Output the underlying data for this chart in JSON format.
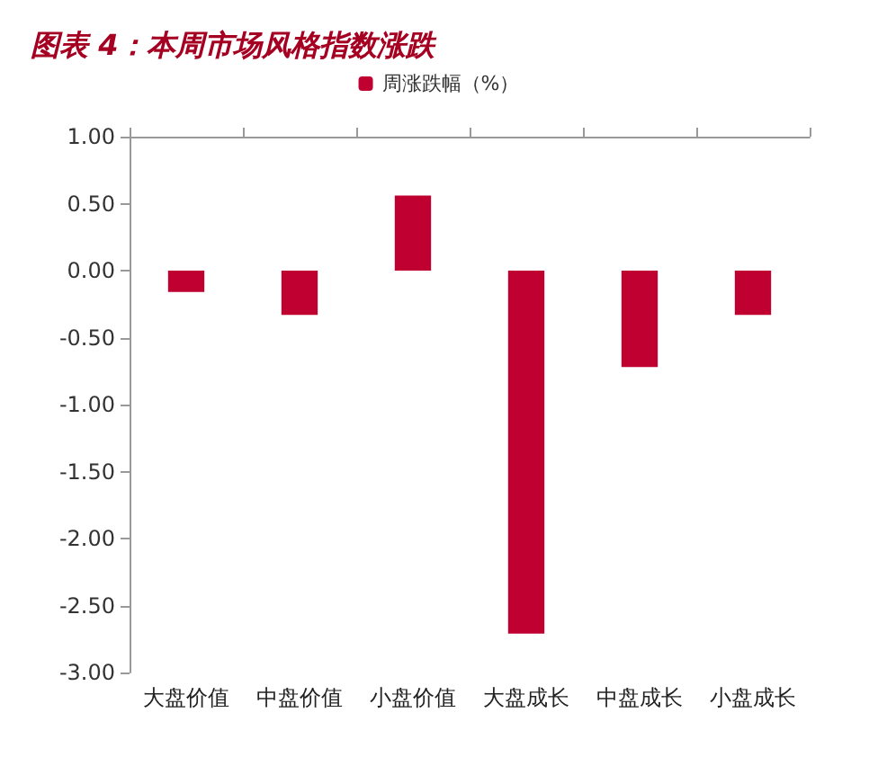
{
  "chart_data": {
    "type": "bar",
    "title": "图表 4：本周市场风格指数涨跌",
    "categories": [
      "大盘价值",
      "中盘价值",
      "小盘价值",
      "大盘成长",
      "中盘成长",
      "小盘成长"
    ],
    "series": [
      {
        "name": "周涨跌幅（%）",
        "color": "#c00030",
        "values": [
          -0.16,
          -0.33,
          0.56,
          -2.71,
          -0.72,
          -0.33
        ]
      }
    ],
    "ylim": [
      -3,
      1
    ],
    "yticks": [
      {
        "value": -3,
        "label": "-3.00"
      },
      {
        "value": -2.5,
        "label": "-2.50"
      },
      {
        "value": -2,
        "label": "-2.00"
      },
      {
        "value": -1.5,
        "label": "-1.50"
      },
      {
        "value": -1,
        "label": "-1.00"
      },
      {
        "value": -0.5,
        "label": "-0.50"
      },
      {
        "value": 0,
        "label": "0.00"
      },
      {
        "value": 0.5,
        "label": "0.50"
      },
      {
        "value": 1,
        "label": "1.00"
      }
    ],
    "grid": false,
    "legend": "top"
  }
}
